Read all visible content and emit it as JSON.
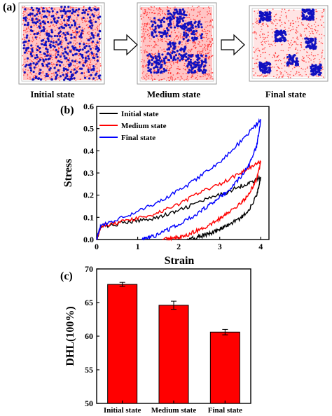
{
  "panel_a": {
    "label": "(a)",
    "states": [
      "Initial state",
      "Medium state",
      "Final state"
    ]
  },
  "colors": {
    "initial": "#000000",
    "medium": "#ff0000",
    "final": "#0000ff",
    "bar": "#ff0000",
    "matrix": "#ff2020",
    "filler": "#1010c0"
  },
  "chart_data": [
    {
      "panel": "(b)",
      "type": "line",
      "xlabel": "Strain",
      "ylabel": "Stress",
      "xlim": [
        0,
        4.2
      ],
      "ylim": [
        0,
        0.6
      ],
      "xticks": [
        0,
        1,
        2,
        3,
        4
      ],
      "yticks": [
        0.0,
        0.1,
        0.2,
        0.3,
        0.4,
        0.5,
        0.6
      ],
      "legend_position": "top-left",
      "series": [
        {
          "name": "Initial state",
          "color": "#000000",
          "loading": {
            "x": [
              0,
              0.1,
              0.5,
              1.0,
              1.5,
              2.0,
              2.5,
              3.0,
              3.5,
              3.8,
              4.0
            ],
            "y": [
              0,
              0.055,
              0.07,
              0.085,
              0.1,
              0.13,
              0.17,
              0.2,
              0.24,
              0.26,
              0.28
            ]
          },
          "unloading": {
            "x": [
              4.0,
              3.9,
              3.7,
              3.5,
              3.2,
              3.0,
              2.8,
              2.6,
              2.4,
              2.2
            ],
            "y": [
              0.28,
              0.2,
              0.13,
              0.095,
              0.065,
              0.045,
              0.03,
              0.018,
              0.008,
              0.0
            ]
          }
        },
        {
          "name": "Medium state",
          "color": "#ff0000",
          "loading": {
            "x": [
              0,
              0.1,
              0.5,
              1.0,
              1.5,
              2.0,
              2.5,
              3.0,
              3.5,
              3.8,
              4.0
            ],
            "y": [
              0,
              0.06,
              0.075,
              0.095,
              0.12,
              0.16,
              0.21,
              0.25,
              0.3,
              0.33,
              0.35
            ]
          },
          "unloading": {
            "x": [
              4.0,
              3.9,
              3.7,
              3.5,
              3.2,
              3.0,
              2.8,
              2.5,
              2.2,
              2.0,
              1.8,
              1.6
            ],
            "y": [
              0.35,
              0.27,
              0.2,
              0.16,
              0.12,
              0.095,
              0.07,
              0.045,
              0.02,
              0.01,
              0.003,
              0.0
            ]
          }
        },
        {
          "name": "Final state",
          "color": "#0000ff",
          "loading": {
            "x": [
              0,
              0.1,
              0.5,
              1.0,
              1.5,
              2.0,
              2.5,
              3.0,
              3.5,
              3.8,
              4.0
            ],
            "y": [
              0,
              0.065,
              0.09,
              0.125,
              0.17,
              0.22,
              0.28,
              0.35,
              0.44,
              0.5,
              0.54
            ]
          },
          "unloading": {
            "x": [
              4.0,
              3.9,
              3.7,
              3.5,
              3.2,
              3.0,
              2.7,
              2.4,
              2.0,
              1.7,
              1.4,
              1.2,
              1.1
            ],
            "y": [
              0.54,
              0.42,
              0.33,
              0.28,
              0.22,
              0.19,
              0.15,
              0.11,
              0.07,
              0.04,
              0.015,
              0.005,
              0.0
            ]
          }
        }
      ]
    },
    {
      "panel": "(c)",
      "type": "bar",
      "ylabel": "DHL(100%)",
      "categories": [
        "Initial state",
        "Medium state",
        "Final state"
      ],
      "values": [
        67.7,
        64.6,
        60.6
      ],
      "errors": [
        0.3,
        0.6,
        0.4
      ],
      "ylim": [
        50,
        70
      ],
      "yticks": [
        50,
        55,
        60,
        65,
        70
      ],
      "color": "#ff0000"
    }
  ]
}
